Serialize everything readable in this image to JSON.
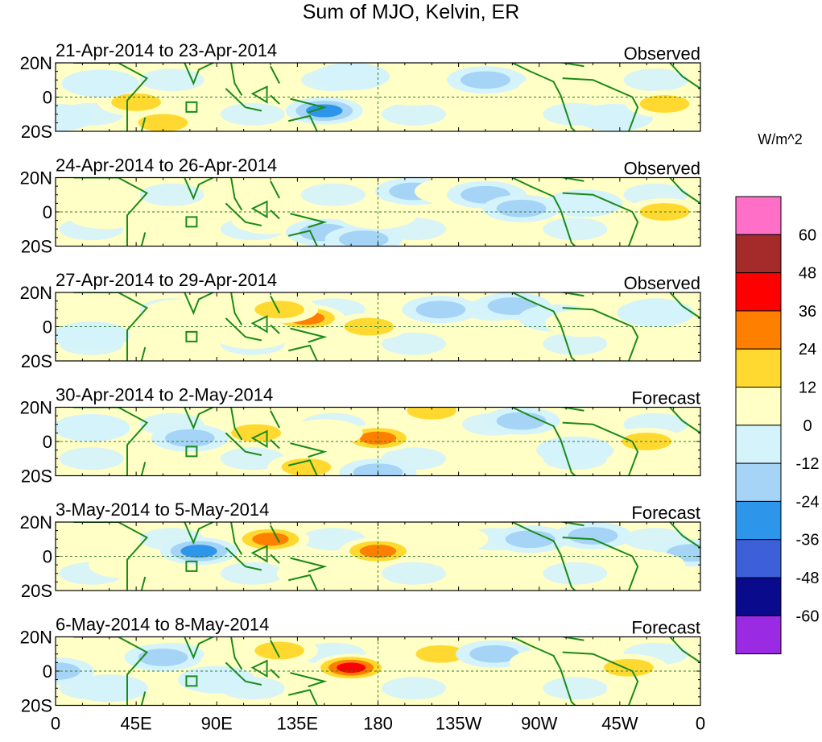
{
  "chart_data": {
    "type": "heatmap",
    "title": "Sum of MJO, Kelvin, ER",
    "lon_range": [
      0,
      360
    ],
    "lat_range": [
      -20,
      20
    ],
    "x_ticks": [
      {
        "lon": 0,
        "label": "0"
      },
      {
        "lon": 45,
        "label": "45E"
      },
      {
        "lon": 90,
        "label": "90E"
      },
      {
        "lon": 135,
        "label": "135E"
      },
      {
        "lon": 180,
        "label": "180"
      },
      {
        "lon": 225,
        "label": "135W"
      },
      {
        "lon": 270,
        "label": "90W"
      },
      {
        "lon": 315,
        "label": "45W"
      },
      {
        "lon": 360,
        "label": "0"
      }
    ],
    "y_ticks": [
      {
        "lat": 20,
        "label": "20N"
      },
      {
        "lat": 0,
        "label": "0"
      },
      {
        "lat": -20,
        "label": "20S"
      }
    ],
    "colorbar": {
      "unit": "W/m^2",
      "levels": [
        "60",
        "48",
        "36",
        "24",
        "12",
        "0",
        "-12",
        "-24",
        "-36",
        "-48",
        "-60"
      ],
      "colors": [
        "#ff6ec7",
        "#a52a2a",
        "#ff0000",
        "#ff7f00",
        "#ffd92f",
        "#ffffc6",
        "#d4f3fb",
        "#a6d4f7",
        "#2e96ea",
        "#3d60d8",
        "#0a0a8c",
        "#9a2be2"
      ]
    },
    "panels": [
      {
        "date_range": "21-Apr-2014 to 23-Apr-2014",
        "status": "Observed",
        "anomalies": [
          {
            "lon": 45,
            "lat": -3,
            "value": 30
          },
          {
            "lon": 60,
            "lat": -15,
            "value": 35
          },
          {
            "lon": 25,
            "lat": 8,
            "value": -15
          },
          {
            "lon": 105,
            "lat": 8,
            "value": 22
          },
          {
            "lon": 150,
            "lat": -8,
            "value": -38
          },
          {
            "lon": 165,
            "lat": 12,
            "value": -15
          },
          {
            "lon": 200,
            "lat": 3,
            "value": 20
          },
          {
            "lon": 240,
            "lat": 10,
            "value": -25
          },
          {
            "lon": 280,
            "lat": 5,
            "value": 15
          },
          {
            "lon": 312,
            "lat": -12,
            "value": -20
          },
          {
            "lon": 340,
            "lat": -4,
            "value": 28
          },
          {
            "lon": 0,
            "lat": -12,
            "value": -12
          }
        ]
      },
      {
        "date_range": "24-Apr-2014 to 26-Apr-2014",
        "status": "Observed",
        "anomalies": [
          {
            "lon": 28,
            "lat": -2,
            "value": 15
          },
          {
            "lon": 110,
            "lat": 10,
            "value": 20
          },
          {
            "lon": 120,
            "lat": -5,
            "value": 22
          },
          {
            "lon": 150,
            "lat": -12,
            "value": -30
          },
          {
            "lon": 172,
            "lat": -16,
            "value": -35
          },
          {
            "lon": 200,
            "lat": 12,
            "value": -28
          },
          {
            "lon": 222,
            "lat": 12,
            "value": 20
          },
          {
            "lon": 240,
            "lat": 10,
            "value": -30
          },
          {
            "lon": 260,
            "lat": 2,
            "value": -25
          },
          {
            "lon": 295,
            "lat": 5,
            "value": -22
          },
          {
            "lon": 340,
            "lat": 0,
            "value": 25
          },
          {
            "lon": 180,
            "lat": -2,
            "value": 15
          }
        ]
      },
      {
        "date_range": "27-Apr-2014 to 29-Apr-2014",
        "status": "Observed",
        "anomalies": [
          {
            "lon": 140,
            "lat": 5,
            "value": 40
          },
          {
            "lon": 125,
            "lat": 10,
            "value": 28
          },
          {
            "lon": 110,
            "lat": -5,
            "value": 20
          },
          {
            "lon": 175,
            "lat": 0,
            "value": 25
          },
          {
            "lon": 215,
            "lat": 10,
            "value": -35
          },
          {
            "lon": 255,
            "lat": 12,
            "value": -30
          },
          {
            "lon": 280,
            "lat": 5,
            "value": -22
          },
          {
            "lon": 295,
            "lat": 2,
            "value": 18
          },
          {
            "lon": 335,
            "lat": 8,
            "value": -22
          },
          {
            "lon": 70,
            "lat": 8,
            "value": 15
          },
          {
            "lon": 20,
            "lat": -5,
            "value": -15
          },
          {
            "lon": 150,
            "lat": -15,
            "value": 20
          }
        ]
      },
      {
        "date_range": "30-Apr-2014 to 2-May-2014",
        "status": "Forecast",
        "anomalies": [
          {
            "lon": 180,
            "lat": 2,
            "value": 42
          },
          {
            "lon": 210,
            "lat": 18,
            "value": 32
          },
          {
            "lon": 112,
            "lat": 5,
            "value": 35
          },
          {
            "lon": 140,
            "lat": -15,
            "value": 25
          },
          {
            "lon": 75,
            "lat": 2,
            "value": -30
          },
          {
            "lon": 180,
            "lat": -18,
            "value": -28
          },
          {
            "lon": 260,
            "lat": 12,
            "value": -30
          },
          {
            "lon": 290,
            "lat": -5,
            "value": -18
          },
          {
            "lon": 330,
            "lat": 0,
            "value": 28
          },
          {
            "lon": 20,
            "lat": 8,
            "value": -15
          },
          {
            "lon": 150,
            "lat": 5,
            "value": 20
          }
        ]
      },
      {
        "date_range": "3-May-2014 to 5-May-2014",
        "status": "Forecast",
        "anomalies": [
          {
            "lon": 120,
            "lat": 10,
            "value": 45
          },
          {
            "lon": 180,
            "lat": 3,
            "value": 42
          },
          {
            "lon": 80,
            "lat": 3,
            "value": -45
          },
          {
            "lon": 220,
            "lat": 10,
            "value": 22
          },
          {
            "lon": 265,
            "lat": 10,
            "value": -28
          },
          {
            "lon": 300,
            "lat": 12,
            "value": -25
          },
          {
            "lon": 355,
            "lat": 2,
            "value": -30
          },
          {
            "lon": 40,
            "lat": -5,
            "value": 15
          },
          {
            "lon": 145,
            "lat": -10,
            "value": 20
          },
          {
            "lon": 330,
            "lat": -5,
            "value": 15
          }
        ]
      },
      {
        "date_range": "6-May-2014 to 8-May-2014",
        "status": "Forecast",
        "anomalies": [
          {
            "lon": 165,
            "lat": 2,
            "value": 48
          },
          {
            "lon": 125,
            "lat": 12,
            "value": 35
          },
          {
            "lon": 215,
            "lat": 10,
            "value": 30
          },
          {
            "lon": 245,
            "lat": 10,
            "value": -35
          },
          {
            "lon": 320,
            "lat": 2,
            "value": 32
          },
          {
            "lon": 60,
            "lat": 8,
            "value": -28
          },
          {
            "lon": 0,
            "lat": 0,
            "value": -30
          },
          {
            "lon": 90,
            "lat": -5,
            "value": -15
          },
          {
            "lon": 275,
            "lat": 5,
            "value": 15
          },
          {
            "lon": 30,
            "lat": -10,
            "value": -15
          }
        ]
      }
    ]
  }
}
